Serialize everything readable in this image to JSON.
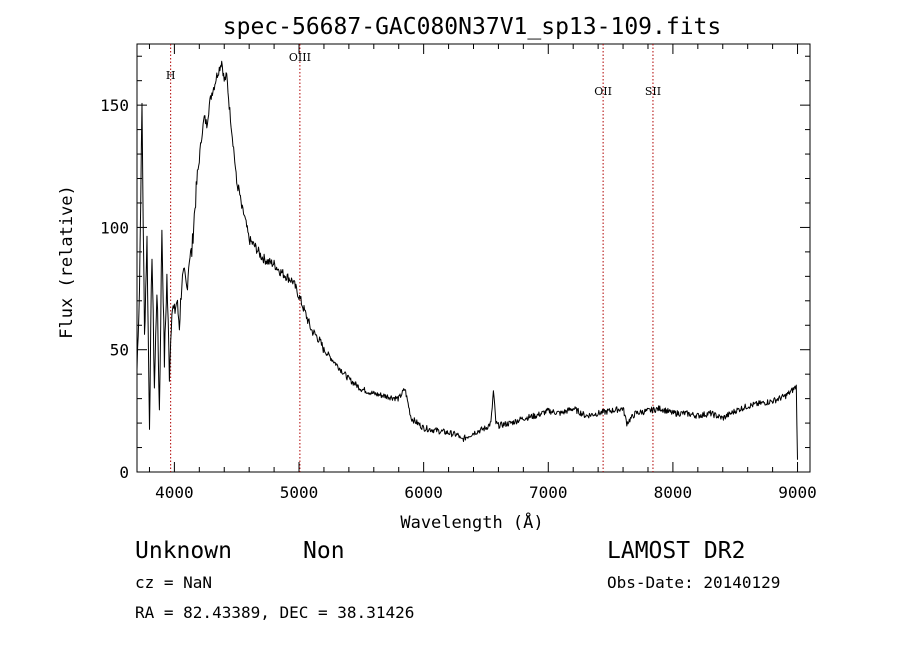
{
  "chart_data": {
    "type": "line",
    "title": "spec-56687-GAC080N37V1_sp13-109.fits",
    "xlabel": "Wavelength (Å)",
    "ylabel": "Flux (relative)",
    "xlim": [
      3700,
      9100
    ],
    "ylim": [
      0,
      175
    ],
    "xticks": [
      4000,
      5000,
      6000,
      7000,
      8000,
      9000
    ],
    "xtick_labels": [
      "4000",
      "5000",
      "6000",
      "7000",
      "8000",
      "9000"
    ],
    "yticks": [
      0,
      50,
      100,
      150
    ],
    "ytick_labels": [
      "0",
      "50",
      "100",
      "150"
    ],
    "grid": false,
    "series": [
      {
        "x": [
          3700,
          3720,
          3740,
          3760,
          3780,
          3800,
          3820,
          3840,
          3860,
          3880,
          3900,
          3920,
          3940,
          3960,
          3980,
          4000,
          4020,
          4040,
          4060,
          4080,
          4100,
          4120,
          4140,
          4160,
          4180,
          4200,
          4220,
          4240,
          4260,
          4280,
          4300,
          4320,
          4340,
          4360,
          4380,
          4400,
          4420,
          4440,
          4460,
          4480,
          4500,
          4520,
          4540,
          4560,
          4580,
          4600,
          4650,
          4700,
          4750,
          4800,
          4850,
          4900,
          4950,
          5000,
          5050,
          5100,
          5150,
          5200,
          5300,
          5400,
          5500,
          5600,
          5700,
          5800,
          5850,
          5900,
          6000,
          6100,
          6200,
          6280,
          6300,
          6400,
          6500,
          6540,
          6560,
          6580,
          6600,
          6700,
          6800,
          6900,
          7000,
          7100,
          7200,
          7300,
          7400,
          7500,
          7600,
          7630,
          7700,
          7800,
          7900,
          8000,
          8100,
          8200,
          8300,
          8400,
          8500,
          8600,
          8700,
          8800,
          8900,
          8950,
          8990,
          9000
        ],
        "y": [
          42,
          75,
          150,
          55,
          95,
          20,
          90,
          35,
          75,
          25,
          100,
          45,
          80,
          40,
          68,
          65,
          70,
          60,
          78,
          80,
          75,
          88,
          90,
          105,
          118,
          128,
          138,
          145,
          142,
          150,
          155,
          158,
          162,
          165,
          168,
          160,
          162,
          150,
          140,
          130,
          118,
          115,
          108,
          105,
          100,
          95,
          92,
          88,
          86,
          85,
          82,
          80,
          78,
          72,
          65,
          58,
          55,
          50,
          44,
          38,
          34,
          32,
          31,
          30,
          34,
          22,
          18,
          17,
          16,
          15,
          13,
          16,
          18,
          20,
          33,
          20,
          19,
          20,
          22,
          23,
          25,
          24,
          26,
          23,
          24,
          25,
          26,
          20,
          24,
          25,
          26,
          24,
          24,
          23,
          24,
          22,
          25,
          27,
          28,
          29,
          31,
          33,
          35,
          5
        ]
      }
    ],
    "lines": [
      {
        "x": 3970,
        "label": "H"
      },
      {
        "x": 5007,
        "label": "OIII"
      },
      {
        "x": 7440,
        "label": "OII"
      },
      {
        "x": 7840,
        "label": "SII"
      }
    ]
  },
  "info": {
    "classification": "Unknown",
    "subclass": "Non",
    "survey": "LAMOST DR2",
    "cz": "cz = NaN",
    "obs_date": "Obs-Date: 20140129",
    "coords": "RA =  82.43389, DEC =  38.31426"
  }
}
